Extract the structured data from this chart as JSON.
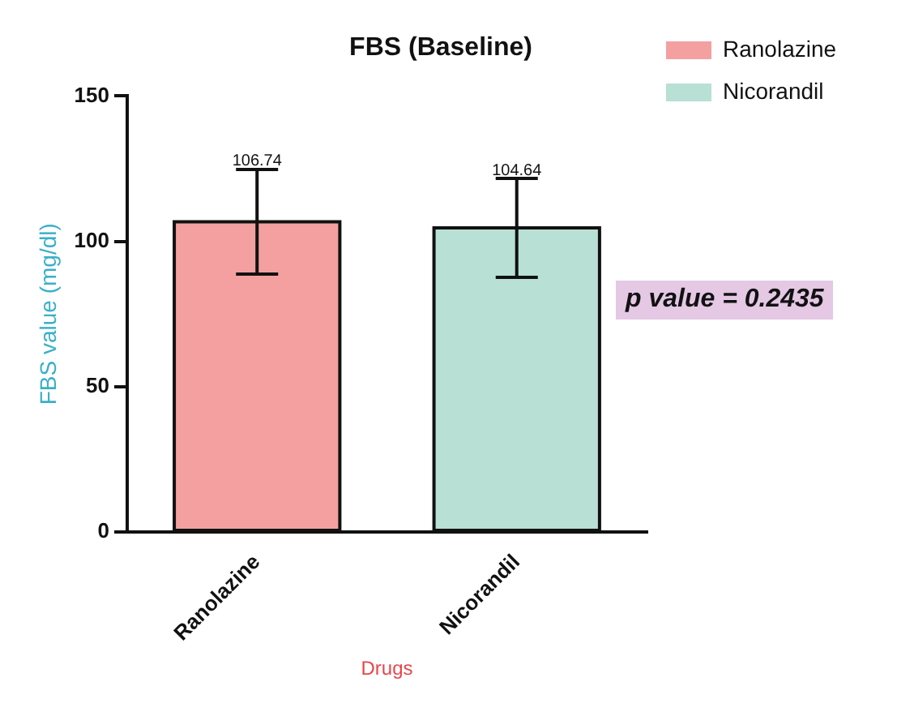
{
  "chart_data": {
    "type": "bar",
    "title": "FBS (Baseline)",
    "xlabel": "Drugs",
    "ylabel": "FBS value (mg/dl)",
    "categories": [
      "Ranolazine",
      "Nicorandil"
    ],
    "series": [
      {
        "name": "Ranolazine",
        "color": "#f4a0a0",
        "values": [
          106.74,
          null
        ],
        "value_labels": [
          "106.74",
          null
        ],
        "errors": [
          18,
          null
        ]
      },
      {
        "name": "Nicorandil",
        "color": "#b8e0d4",
        "values": [
          null,
          104.64
        ],
        "value_labels": [
          null,
          "104.64"
        ],
        "errors": [
          null,
          17
        ]
      }
    ],
    "ylim": [
      0,
      150
    ],
    "yticks": [
      0,
      50,
      100,
      150
    ],
    "grid": false,
    "legend": "top right",
    "annotations": [
      "p value = 0.2435"
    ]
  }
}
